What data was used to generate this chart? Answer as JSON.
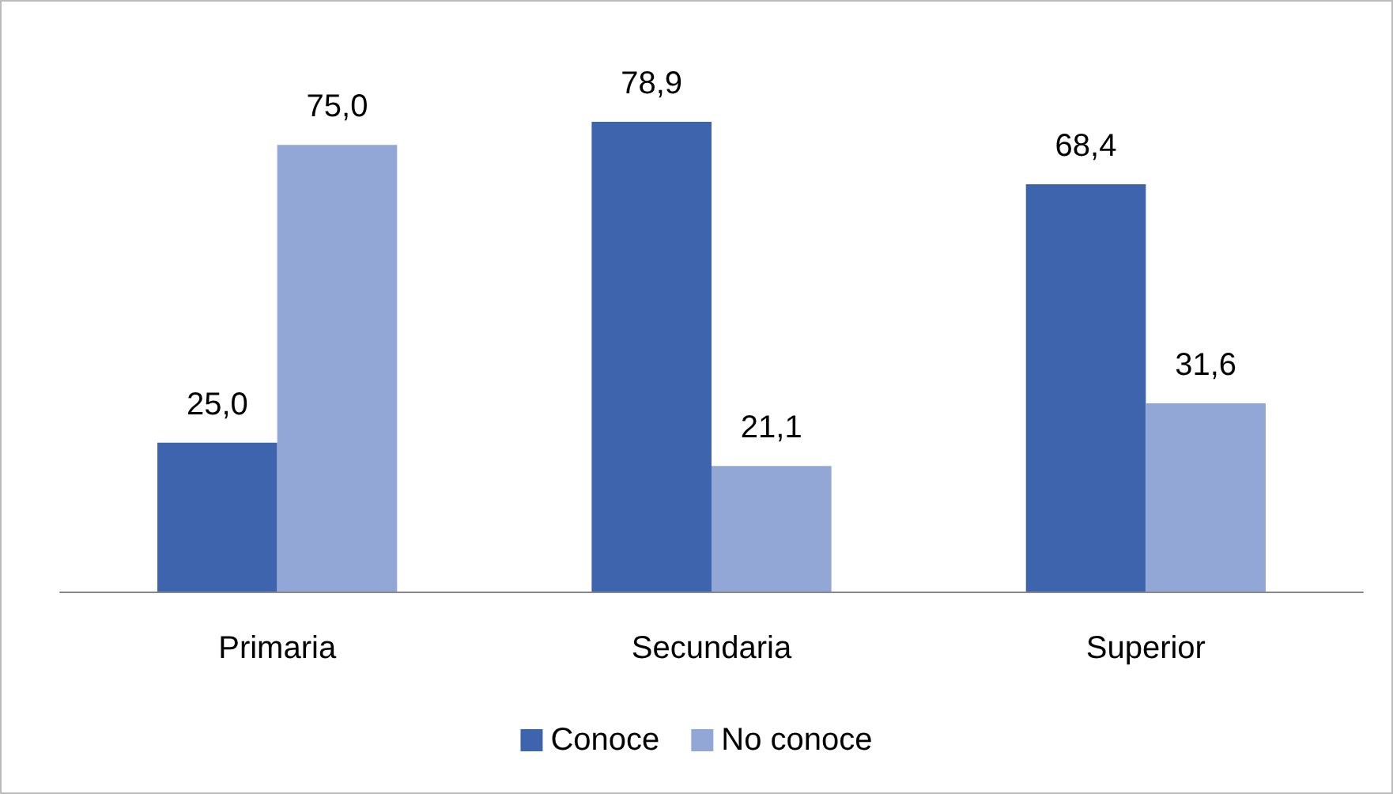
{
  "chart_data": {
    "type": "bar",
    "categories": [
      "Primaria",
      "Secundaria",
      "Superior"
    ],
    "series": [
      {
        "name": "Conoce",
        "color": "#3f64ae",
        "values": [
          25.0,
          78.9,
          68.4
        ],
        "value_labels": [
          "25,0",
          "78,9",
          "68,4"
        ]
      },
      {
        "name": "No conoce",
        "color": "#93a7d6",
        "values": [
          75.0,
          21.1,
          31.6
        ],
        "value_labels": [
          "75,0",
          "21,1",
          "31,6"
        ]
      }
    ],
    "legend": "bottom",
    "grid": false
  }
}
